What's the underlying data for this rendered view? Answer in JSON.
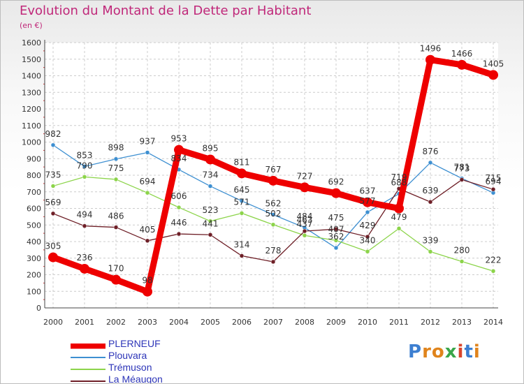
{
  "header": {
    "title": "Evolution du Montant de la Dette par Habitant",
    "subtitle": "(en €)"
  },
  "colors": {
    "accent": "#c0287a",
    "legend_text": "#2d35b8",
    "grid": "#cccccc"
  },
  "logo": {
    "text": "Proxiti",
    "letters": [
      "P",
      "r",
      "o",
      "x",
      "i",
      "t",
      "i"
    ],
    "letter_colors": [
      "#3d7fd1",
      "#e0841c",
      "#e0841c",
      "#3aa64a",
      "#d9452c",
      "#3d7fd1",
      "#e0841c"
    ]
  },
  "chart_data": {
    "type": "line",
    "title": "Evolution du Montant de la Dette par Habitant",
    "subtitle": "(en €)",
    "x": [
      "2000",
      "2001",
      "2002",
      "2003",
      "2004",
      "2005",
      "2006",
      "2007",
      "2008",
      "2009",
      "2010",
      "2011",
      "2012",
      "2013",
      "2014"
    ],
    "ylim": [
      0,
      1600
    ],
    "yticks": [
      "0",
      "100",
      "200",
      "300",
      "400",
      "500",
      "600",
      "700",
      "800",
      "900",
      "1000",
      "1100",
      "1200",
      "1300",
      "1400",
      "1500",
      "1600"
    ],
    "grid": true,
    "legend": "bottom-left",
    "series": [
      {
        "name": "PLERNEUF",
        "color": "#ee0000",
        "emphasis": true,
        "values": [
          305,
          236,
          170,
          98,
          953,
          895,
          811,
          767,
          727,
          692,
          637,
          600,
          1496,
          1466,
          1405
        ],
        "labels": [
          "305",
          "236",
          "170",
          "98",
          "953",
          "895",
          "811",
          "767",
          "727",
          "692",
          "637",
          "",
          "1496",
          "1466",
          "1405"
        ]
      },
      {
        "name": "Plouvara",
        "color": "#3d8fd1",
        "emphasis": false,
        "values": [
          982,
          853,
          898,
          937,
          834,
          734,
          645,
          562,
          484,
          362,
          577,
          688,
          876,
          781,
          694
        ],
        "labels": [
          "982",
          "853",
          "898",
          "937",
          "834",
          "734",
          "645",
          "562",
          "484",
          "362",
          "577",
          "688",
          "876",
          "781",
          "694"
        ]
      },
      {
        "name": "Trémuson",
        "color": "#8cd44a",
        "emphasis": false,
        "values": [
          735,
          790,
          775,
          694,
          606,
          523,
          571,
          502,
          437,
          407,
          340,
          479,
          339,
          280,
          222
        ],
        "labels": [
          "735",
          "790",
          "775",
          "694",
          "606",
          "523",
          "571",
          "502",
          "437",
          "407",
          "340",
          "479",
          "339",
          "280",
          "222"
        ]
      },
      {
        "name": "La Méaugon",
        "color": "#6e1f27",
        "emphasis": false,
        "values": [
          569,
          494,
          486,
          405,
          446,
          441,
          314,
          278,
          463,
          475,
          429,
          719,
          639,
          773,
          715
        ],
        "labels": [
          "569",
          "494",
          "486",
          "405",
          "446",
          "441",
          "314",
          "278",
          "463",
          "475",
          "429",
          "719",
          "639",
          "773",
          "715"
        ]
      }
    ]
  }
}
